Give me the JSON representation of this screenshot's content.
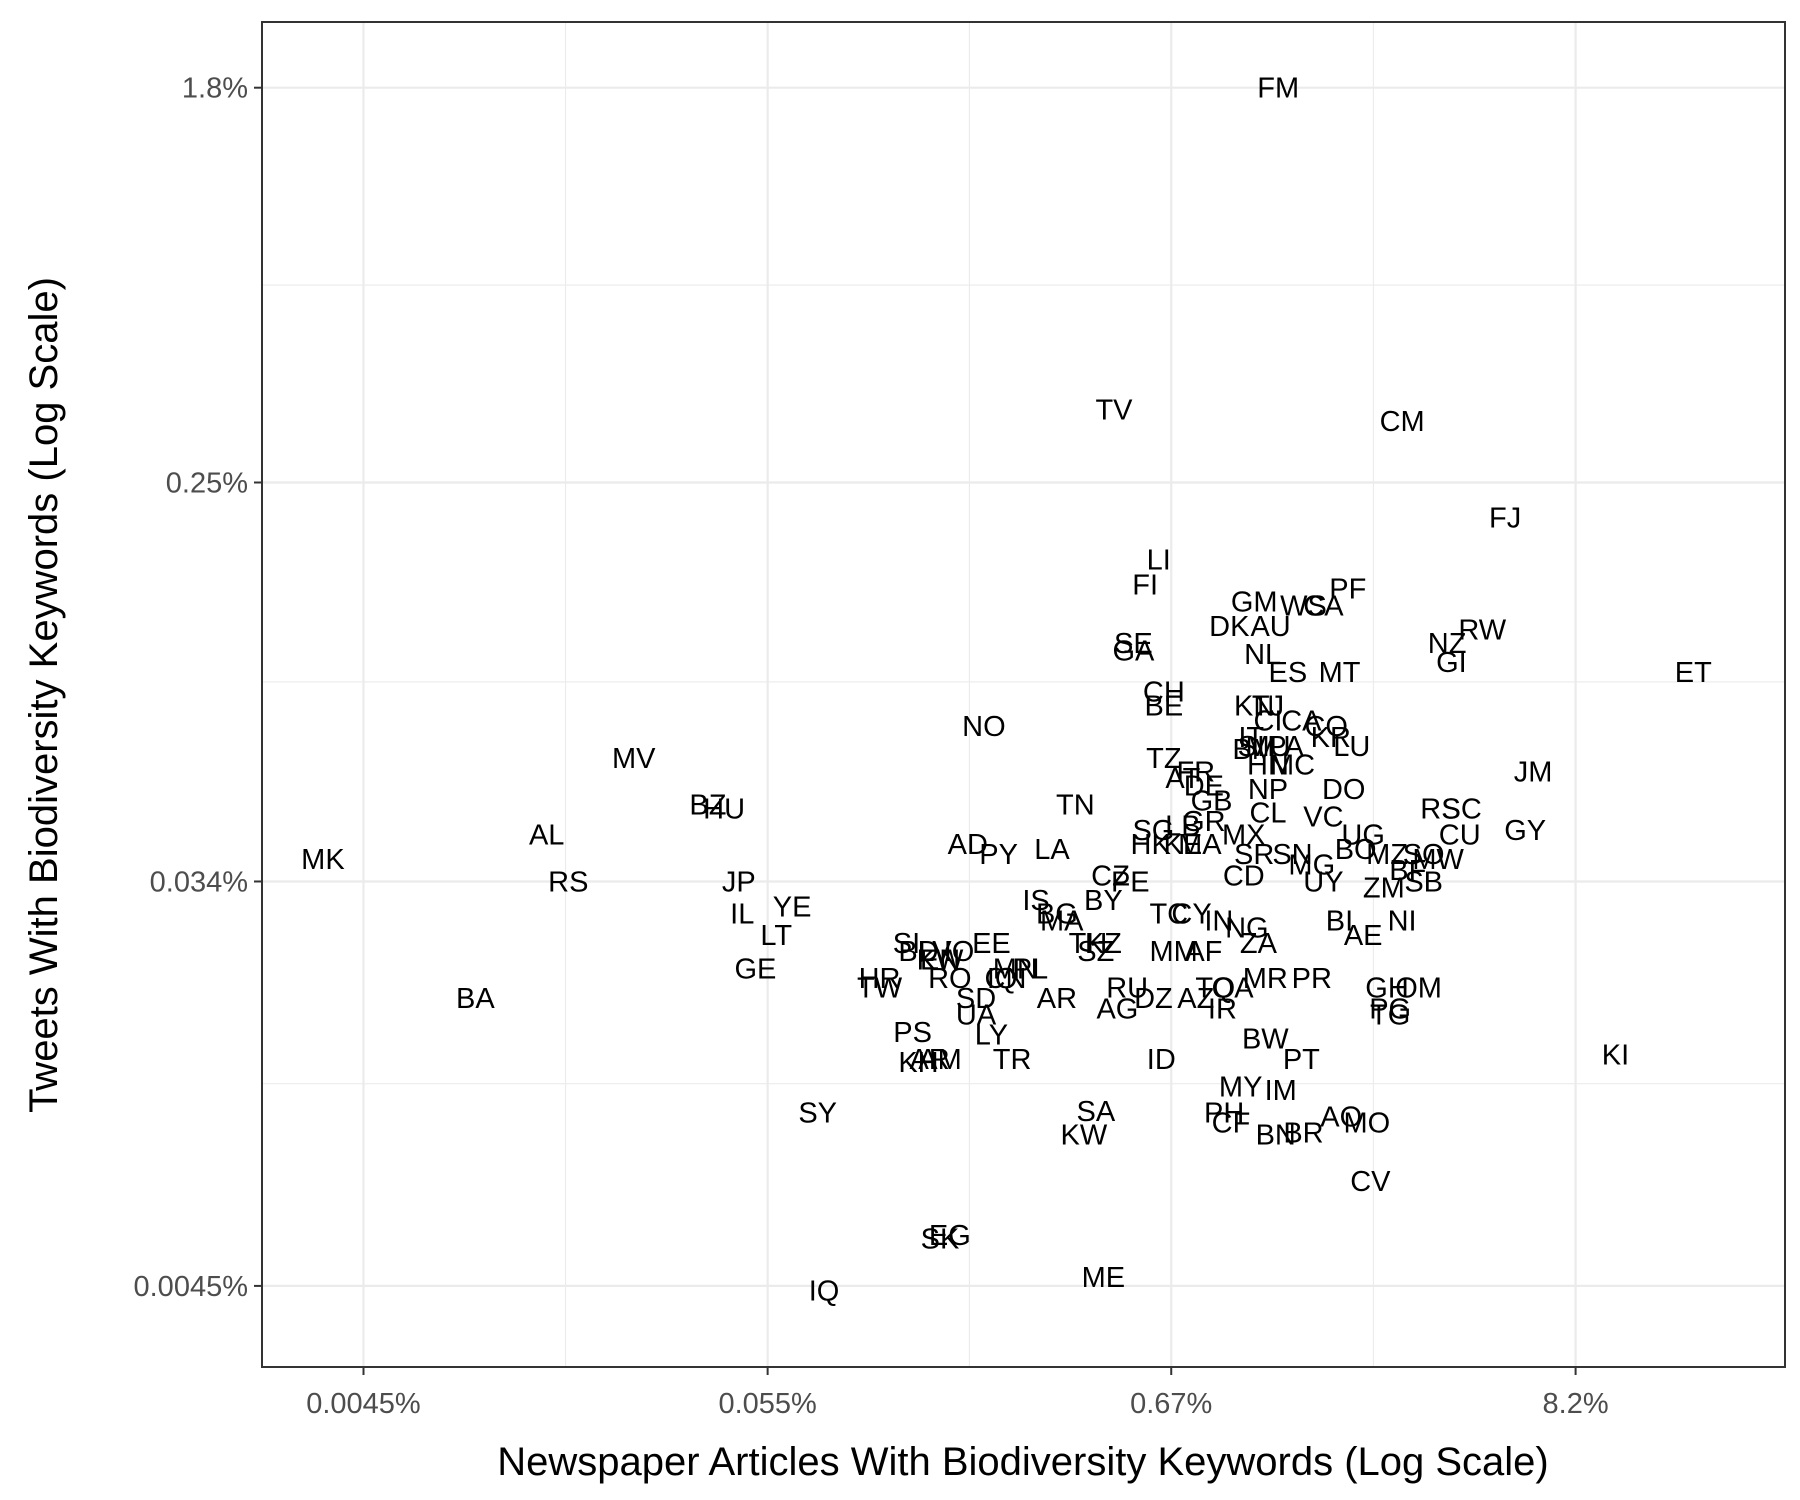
{
  "chart_data": {
    "type": "scatter",
    "xlabel": "Newspaper Articles With Biodiversity Keywords (Log Scale)",
    "ylabel": "Tweets With Biodiversity Keywords (Log Scale)",
    "x_scale": "log",
    "y_scale": "log",
    "xlim": [
      0.0024,
      30
    ],
    "ylim": [
      0.003,
      2.5
    ],
    "x_ticks": [
      {
        "value": 0.0045,
        "label": "0.0045%"
      },
      {
        "value": 0.055,
        "label": "0.055%"
      },
      {
        "value": 0.67,
        "label": "0.67%"
      },
      {
        "value": 8.2,
        "label": "8.2%"
      }
    ],
    "y_ticks": [
      {
        "value": 0.0045,
        "label": "0.0045%"
      },
      {
        "value": 0.034,
        "label": "0.034%"
      },
      {
        "value": 0.25,
        "label": "0.25%"
      },
      {
        "value": 1.8,
        "label": "1.8%"
      }
    ],
    "grid": true,
    "background": "#ffffff",
    "grid_color": "#ebebeb",
    "points": [
      {
        "label": "FM",
        "x": 1.3,
        "y": 1.8
      },
      {
        "label": "TV",
        "x": 0.47,
        "y": 0.36
      },
      {
        "label": "CM",
        "x": 2.8,
        "y": 0.34
      },
      {
        "label": "FJ",
        "x": 5.3,
        "y": 0.21
      },
      {
        "label": "ET",
        "x": 17,
        "y": 0.097
      },
      {
        "label": "LI",
        "x": 0.62,
        "y": 0.17
      },
      {
        "label": "FI",
        "x": 0.57,
        "y": 0.15
      },
      {
        "label": "PF",
        "x": 2.0,
        "y": 0.147
      },
      {
        "label": "GM",
        "x": 1.12,
        "y": 0.138
      },
      {
        "label": "WS",
        "x": 1.52,
        "y": 0.135
      },
      {
        "label": "CA",
        "x": 1.72,
        "y": 0.135
      },
      {
        "label": "RW",
        "x": 4.6,
        "y": 0.12
      },
      {
        "label": "NZ",
        "x": 3.7,
        "y": 0.112
      },
      {
        "label": "DK",
        "x": 0.96,
        "y": 0.122
      },
      {
        "label": "AU",
        "x": 1.24,
        "y": 0.122
      },
      {
        "label": "SE",
        "x": 0.53,
        "y": 0.112
      },
      {
        "label": "GA",
        "x": 0.53,
        "y": 0.108
      },
      {
        "label": "NL",
        "x": 1.18,
        "y": 0.106
      },
      {
        "label": "GI",
        "x": 3.8,
        "y": 0.102
      },
      {
        "label": "ES",
        "x": 1.38,
        "y": 0.097
      },
      {
        "label": "MT",
        "x": 1.9,
        "y": 0.097
      },
      {
        "label": "CH",
        "x": 0.64,
        "y": 0.088
      },
      {
        "label": "BE",
        "x": 0.64,
        "y": 0.082
      },
      {
        "label": "KN",
        "x": 1.12,
        "y": 0.082
      },
      {
        "label": "TJ",
        "x": 1.22,
        "y": 0.082
      },
      {
        "label": "CI",
        "x": 1.22,
        "y": 0.076
      },
      {
        "label": "CA",
        "x": 1.5,
        "y": 0.076
      },
      {
        "label": "CO",
        "x": 1.75,
        "y": 0.074
      },
      {
        "label": "NO",
        "x": 0.21,
        "y": 0.074
      },
      {
        "label": "IT",
        "x": 1.1,
        "y": 0.07
      },
      {
        "label": "SI",
        "x": 1.1,
        "y": 0.067
      },
      {
        "label": "MU",
        "x": 1.22,
        "y": 0.067
      },
      {
        "label": "PA",
        "x": 1.36,
        "y": 0.067
      },
      {
        "label": "KR",
        "x": 1.8,
        "y": 0.07
      },
      {
        "label": "LU",
        "x": 2.05,
        "y": 0.067
      },
      {
        "label": "TZ",
        "x": 0.64,
        "y": 0.063
      },
      {
        "label": "BM",
        "x": 1.12,
        "y": 0.066
      },
      {
        "label": "FR",
        "x": 0.78,
        "y": 0.059
      },
      {
        "label": "HN",
        "x": 1.22,
        "y": 0.061
      },
      {
        "label": "MC",
        "x": 1.42,
        "y": 0.061
      },
      {
        "label": "MV",
        "x": 0.024,
        "y": 0.063
      },
      {
        "label": "JM",
        "x": 6.3,
        "y": 0.059
      },
      {
        "label": "AT",
        "x": 0.72,
        "y": 0.057
      },
      {
        "label": "DE",
        "x": 0.82,
        "y": 0.055
      },
      {
        "label": "NP",
        "x": 1.22,
        "y": 0.054
      },
      {
        "label": "DO",
        "x": 1.95,
        "y": 0.054
      },
      {
        "label": "BZ",
        "x": 0.038,
        "y": 0.05
      },
      {
        "label": "HU",
        "x": 0.042,
        "y": 0.049
      },
      {
        "label": "TN",
        "x": 0.37,
        "y": 0.05
      },
      {
        "label": "RS",
        "x": 3.55,
        "y": 0.049
      },
      {
        "label": "SC",
        "x": 4.05,
        "y": 0.049
      },
      {
        "label": "GB",
        "x": 0.86,
        "y": 0.051
      },
      {
        "label": "GR",
        "x": 0.82,
        "y": 0.046
      },
      {
        "label": "CL",
        "x": 1.22,
        "y": 0.048
      },
      {
        "label": "VC",
        "x": 1.72,
        "y": 0.047
      },
      {
        "label": "AL",
        "x": 0.014,
        "y": 0.043
      },
      {
        "label": "GY",
        "x": 6.0,
        "y": 0.044
      },
      {
        "label": "CU",
        "x": 4.0,
        "y": 0.043
      },
      {
        "label": "SG",
        "x": 0.6,
        "y": 0.044
      },
      {
        "label": "LB",
        "x": 0.72,
        "y": 0.045
      },
      {
        "label": "MX",
        "x": 1.05,
        "y": 0.043
      },
      {
        "label": "UG",
        "x": 2.2,
        "y": 0.043
      },
      {
        "label": "AD",
        "x": 0.19,
        "y": 0.041
      },
      {
        "label": "PY",
        "x": 0.23,
        "y": 0.039
      },
      {
        "label": "LA",
        "x": 0.32,
        "y": 0.04
      },
      {
        "label": "HK",
        "x": 0.59,
        "y": 0.041
      },
      {
        "label": "KE",
        "x": 0.72,
        "y": 0.041
      },
      {
        "label": "MA",
        "x": 0.8,
        "y": 0.041
      },
      {
        "label": "SR",
        "x": 1.12,
        "y": 0.039
      },
      {
        "label": "SN",
        "x": 1.42,
        "y": 0.039
      },
      {
        "label": "BO",
        "x": 2.1,
        "y": 0.04
      },
      {
        "label": "MZ",
        "x": 2.55,
        "y": 0.039
      },
      {
        "label": "SO",
        "x": 3.2,
        "y": 0.039
      },
      {
        "label": "MW",
        "x": 3.5,
        "y": 0.038
      },
      {
        "label": "MK",
        "x": 0.0035,
        "y": 0.038
      },
      {
        "label": "MG",
        "x": 1.6,
        "y": 0.037
      },
      {
        "label": "BF",
        "x": 2.9,
        "y": 0.036
      },
      {
        "label": "CZ",
        "x": 0.46,
        "y": 0.035
      },
      {
        "label": "PE",
        "x": 0.52,
        "y": 0.034
      },
      {
        "label": "CD",
        "x": 1.05,
        "y": 0.035
      },
      {
        "label": "UY",
        "x": 1.72,
        "y": 0.034
      },
      {
        "label": "ZM",
        "x": 2.5,
        "y": 0.033
      },
      {
        "label": "SB",
        "x": 3.2,
        "y": 0.034
      },
      {
        "label": "RS",
        "x": 0.016,
        "y": 0.034
      },
      {
        "label": "JP",
        "x": 0.046,
        "y": 0.034
      },
      {
        "label": "BY",
        "x": 0.44,
        "y": 0.031
      },
      {
        "label": "IS",
        "x": 0.29,
        "y": 0.031
      },
      {
        "label": "YE",
        "x": 0.064,
        "y": 0.03
      },
      {
        "label": "TC",
        "x": 0.66,
        "y": 0.029
      },
      {
        "label": "CY",
        "x": 0.76,
        "y": 0.029
      },
      {
        "label": "BG",
        "x": 0.33,
        "y": 0.029
      },
      {
        "label": "IL",
        "x": 0.047,
        "y": 0.029
      },
      {
        "label": "IN",
        "x": 0.9,
        "y": 0.028
      },
      {
        "label": "NI",
        "x": 2.8,
        "y": 0.028
      },
      {
        "label": "MA",
        "x": 0.34,
        "y": 0.028
      },
      {
        "label": "BI",
        "x": 1.9,
        "y": 0.028
      },
      {
        "label": "NG",
        "x": 1.07,
        "y": 0.027
      },
      {
        "label": "LT",
        "x": 0.058,
        "y": 0.026
      },
      {
        "label": "AE",
        "x": 2.2,
        "y": 0.026
      },
      {
        "label": "EE",
        "x": 0.22,
        "y": 0.025
      },
      {
        "label": "TH",
        "x": 0.4,
        "y": 0.025
      },
      {
        "label": "KZ",
        "x": 0.44,
        "y": 0.025
      },
      {
        "label": "ZA",
        "x": 1.15,
        "y": 0.025
      },
      {
        "label": "SI",
        "x": 0.13,
        "y": 0.025
      },
      {
        "label": "AF",
        "x": 0.82,
        "y": 0.024
      },
      {
        "label": "LV",
        "x": 0.155,
        "y": 0.024
      },
      {
        "label": "IO",
        "x": 0.18,
        "y": 0.024
      },
      {
        "label": "BD",
        "x": 0.14,
        "y": 0.024
      },
      {
        "label": "SZ",
        "x": 0.42,
        "y": 0.024
      },
      {
        "label": "MM",
        "x": 0.68,
        "y": 0.024
      },
      {
        "label": "KW",
        "x": 0.16,
        "y": 0.023
      },
      {
        "label": "EN",
        "x": 0.16,
        "y": 0.023
      },
      {
        "label": "GE",
        "x": 0.051,
        "y": 0.022
      },
      {
        "label": "MN",
        "x": 0.255,
        "y": 0.022
      },
      {
        "label": "PL",
        "x": 0.28,
        "y": 0.022
      },
      {
        "label": "MR",
        "x": 1.2,
        "y": 0.021
      },
      {
        "label": "PR",
        "x": 1.6,
        "y": 0.021
      },
      {
        "label": "HR",
        "x": 0.11,
        "y": 0.021
      },
      {
        "label": "RO",
        "x": 0.17,
        "y": 0.021
      },
      {
        "label": "IQ",
        "x": 0.235,
        "y": 0.021
      },
      {
        "label": "CN",
        "x": 0.24,
        "y": 0.021
      },
      {
        "label": "GH",
        "x": 2.55,
        "y": 0.02
      },
      {
        "label": "OM",
        "x": 3.1,
        "y": 0.02
      },
      {
        "label": "TW",
        "x": 0.11,
        "y": 0.02
      },
      {
        "label": "QA",
        "x": 0.98,
        "y": 0.02
      },
      {
        "label": "RU",
        "x": 0.51,
        "y": 0.02
      },
      {
        "label": "TO",
        "x": 0.88,
        "y": 0.02
      },
      {
        "label": "DZ",
        "x": 0.6,
        "y": 0.019
      },
      {
        "label": "AZ",
        "x": 0.78,
        "y": 0.019
      },
      {
        "label": "AR",
        "x": 0.33,
        "y": 0.019
      },
      {
        "label": "SD",
        "x": 0.2,
        "y": 0.019
      },
      {
        "label": "BA",
        "x": 0.009,
        "y": 0.019
      },
      {
        "label": "AG",
        "x": 0.48,
        "y": 0.018
      },
      {
        "label": "IR",
        "x": 0.92,
        "y": 0.018
      },
      {
        "label": "PG",
        "x": 2.6,
        "y": 0.018
      },
      {
        "label": "TG",
        "x": 2.6,
        "y": 0.0175
      },
      {
        "label": "UA",
        "x": 0.2,
        "y": 0.0175
      },
      {
        "label": "PS",
        "x": 0.135,
        "y": 0.016
      },
      {
        "label": "LY",
        "x": 0.22,
        "y": 0.0158
      },
      {
        "label": "BW",
        "x": 1.2,
        "y": 0.0155
      },
      {
        "label": "AR",
        "x": 0.15,
        "y": 0.014
      },
      {
        "label": "AM",
        "x": 0.16,
        "y": 0.014
      },
      {
        "label": "KH",
        "x": 0.14,
        "y": 0.0138
      },
      {
        "label": "TR",
        "x": 0.25,
        "y": 0.014
      },
      {
        "label": "ID",
        "x": 0.63,
        "y": 0.014
      },
      {
        "label": "PT",
        "x": 1.5,
        "y": 0.014
      },
      {
        "label": "KI",
        "x": 10.5,
        "y": 0.0143
      },
      {
        "label": "MY",
        "x": 1.03,
        "y": 0.0122
      },
      {
        "label": "IM",
        "x": 1.32,
        "y": 0.012
      },
      {
        "label": "SY",
        "x": 0.075,
        "y": 0.0107
      },
      {
        "label": "SA",
        "x": 0.42,
        "y": 0.0108
      },
      {
        "label": "PH",
        "x": 0.93,
        "y": 0.0107
      },
      {
        "label": "AO",
        "x": 1.92,
        "y": 0.0105
      },
      {
        "label": "CF",
        "x": 0.97,
        "y": 0.0102
      },
      {
        "label": "MO",
        "x": 2.25,
        "y": 0.0102
      },
      {
        "label": "KW",
        "x": 0.39,
        "y": 0.0096
      },
      {
        "label": "BN",
        "x": 1.28,
        "y": 0.0096
      },
      {
        "label": "BR",
        "x": 1.52,
        "y": 0.0097
      },
      {
        "label": "CV",
        "x": 2.3,
        "y": 0.0076
      },
      {
        "label": "EG",
        "x": 0.17,
        "y": 0.0058
      },
      {
        "label": "SK",
        "x": 0.16,
        "y": 0.0057
      },
      {
        "label": "ME",
        "x": 0.44,
        "y": 0.0047
      },
      {
        "label": "IQ",
        "x": 0.078,
        "y": 0.0044
      }
    ]
  }
}
